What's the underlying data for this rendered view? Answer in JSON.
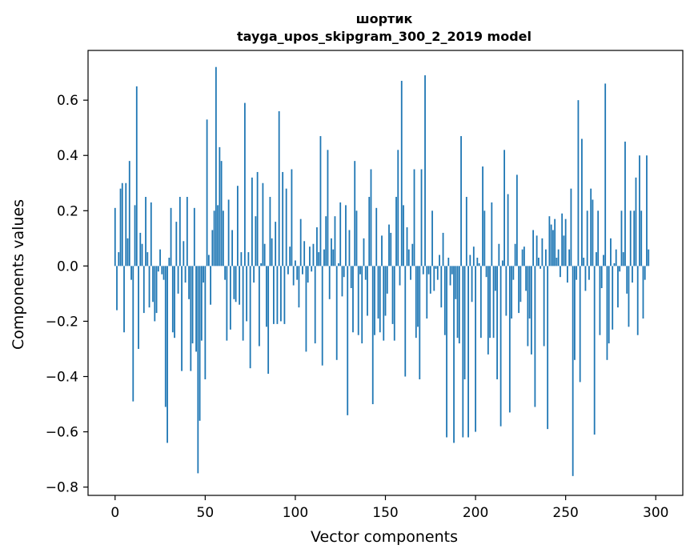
{
  "chart_data": {
    "type": "bar",
    "title_line1": "шортик",
    "title_line2": "tayga_upos_skipgram_300_2_2019 model",
    "xlabel": "Vector components",
    "ylabel": "Components values",
    "xlim": [
      -15,
      315
    ],
    "ylim": [
      -0.83,
      0.78
    ],
    "xticks": [
      0,
      50,
      100,
      150,
      200,
      250,
      300
    ],
    "xtick_labels": [
      "0",
      "50",
      "100",
      "150",
      "200",
      "250",
      "300"
    ],
    "yticks": [
      -0.8,
      -0.6,
      -0.4,
      -0.2,
      0.0,
      0.2,
      0.4,
      0.6
    ],
    "ytick_labels": [
      "−0.8",
      "−0.6",
      "−0.4",
      "−0.2",
      "0.0",
      "0.2",
      "0.4",
      "0.6"
    ],
    "bar_color": "#1f77b4",
    "grid": false,
    "values": [
      0.21,
      -0.16,
      0.05,
      0.28,
      0.3,
      -0.24,
      0.3,
      0.1,
      0.38,
      -0.05,
      -0.49,
      0.22,
      0.65,
      -0.3,
      0.12,
      0.08,
      -0.17,
      0.25,
      0.05,
      -0.15,
      0.23,
      -0.13,
      -0.2,
      -0.17,
      -0.02,
      0.06,
      -0.03,
      -0.05,
      -0.51,
      -0.64,
      0.03,
      0.21,
      -0.24,
      -0.26,
      0.16,
      -0.1,
      0.25,
      -0.38,
      0.09,
      -0.06,
      0.25,
      -0.12,
      -0.38,
      -0.28,
      0.21,
      -0.31,
      -0.75,
      -0.56,
      -0.27,
      -0.06,
      -0.41,
      0.53,
      0.04,
      -0.14,
      0.13,
      0.2,
      0.72,
      0.22,
      0.43,
      0.38,
      0.2,
      -0.05,
      -0.27,
      0.24,
      -0.23,
      0.13,
      -0.12,
      -0.13,
      0.29,
      -0.14,
      0.05,
      -0.27,
      0.59,
      -0.2,
      0.05,
      -0.37,
      0.32,
      -0.06,
      0.18,
      0.34,
      -0.29,
      0.01,
      0.3,
      0.08,
      -0.22,
      -0.39,
      0.25,
      0.1,
      -0.21,
      0.16,
      -0.21,
      0.56,
      -0.2,
      0.34,
      -0.21,
      0.28,
      -0.03,
      0.07,
      0.35,
      -0.07,
      0.02,
      -0.05,
      -0.15,
      0.17,
      -0.03,
      0.09,
      -0.31,
      -0.06,
      0.07,
      -0.02,
      0.08,
      -0.28,
      0.14,
      0.05,
      0.47,
      -0.36,
      0.06,
      0.18,
      0.42,
      -0.12,
      0.1,
      0.06,
      0.18,
      -0.34,
      0.01,
      0.23,
      -0.11,
      -0.04,
      0.22,
      -0.54,
      0.13,
      -0.08,
      -0.24,
      0.38,
      0.2,
      -0.25,
      -0.03,
      -0.28,
      0.1,
      -0.05,
      -0.18,
      0.25,
      0.35,
      -0.5,
      -0.25,
      0.21,
      -0.19,
      -0.24,
      0.11,
      -0.27,
      -0.18,
      -0.1,
      0.15,
      0.12,
      -0.21,
      -0.27,
      0.25,
      0.42,
      -0.07,
      0.67,
      0.22,
      -0.4,
      0.14,
      0.06,
      -0.05,
      0.08,
      0.35,
      -0.26,
      -0.22,
      -0.41,
      0.35,
      -0.03,
      0.69,
      -0.19,
      -0.03,
      -0.1,
      0.2,
      -0.09,
      -0.01,
      -0.05,
      0.04,
      -0.15,
      0.12,
      -0.25,
      -0.62,
      0.03,
      -0.07,
      -0.03,
      -0.64,
      -0.12,
      -0.26,
      -0.28,
      0.47,
      -0.62,
      -0.41,
      0.25,
      -0.62,
      0.04,
      -0.13,
      0.07,
      -0.6,
      0.03,
      0.01,
      -0.26,
      0.36,
      0.2,
      -0.04,
      -0.32,
      -0.26,
      0.23,
      -0.26,
      -0.09,
      -0.41,
      0.08,
      -0.58,
      0.02,
      0.42,
      -0.18,
      0.26,
      -0.53,
      -0.19,
      -0.05,
      0.08,
      0.33,
      -0.17,
      -0.13,
      0.06,
      0.07,
      -0.09,
      -0.29,
      -0.19,
      -0.32,
      0.13,
      -0.51,
      0.11,
      0.03,
      -0.01,
      0.1,
      -0.29,
      0.06,
      -0.59,
      0.18,
      0.15,
      0.13,
      0.17,
      0.03,
      0.06,
      -0.04,
      0.19,
      0.11,
      0.17,
      -0.06,
      0.06,
      0.28,
      -0.76,
      -0.34,
      -0.05,
      0.6,
      -0.42,
      0.46,
      0.03,
      -0.09,
      0.2,
      -0.05,
      0.28,
      0.24,
      -0.61,
      0.05,
      0.2,
      -0.25,
      -0.08,
      0.04,
      0.66,
      -0.34,
      -0.28,
      0.1,
      -0.23,
      0.01,
      0.06,
      -0.15,
      -0.02,
      0.2,
      0.05,
      0.45,
      -0.1,
      -0.22,
      0.2,
      -0.06,
      0.2,
      0.32,
      -0.25,
      0.4,
      0.2,
      -0.19,
      -0.05,
      0.4,
      0.06
    ]
  }
}
